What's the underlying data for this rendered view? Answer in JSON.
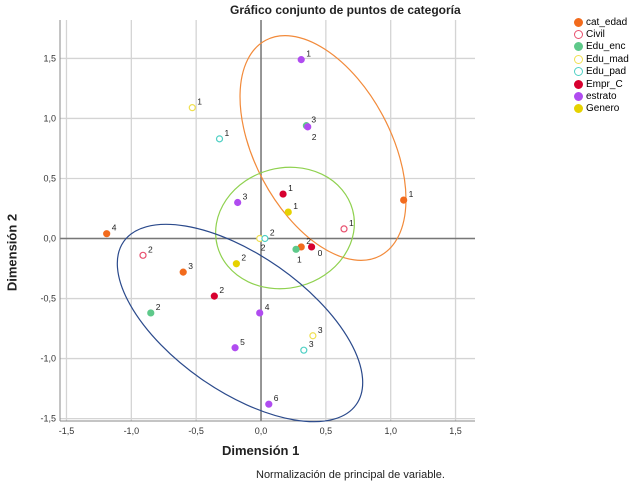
{
  "chart_data": {
    "type": "scatter",
    "title": "Gráfico conjunto de puntos de categoría",
    "xlabel": "Dimensión 1",
    "ylabel": "Dimensión 2",
    "footnote": "Normalización de principal de variable.",
    "xlim": [
      -1.55,
      1.65
    ],
    "ylim": [
      -1.52,
      1.82
    ],
    "xticks": [
      "-1,5",
      "-1,0",
      "-0,5",
      "0,0",
      "0,5",
      "1,0",
      "1,5"
    ],
    "yticks": [
      "1,5",
      "1,0",
      "0,5",
      "0,0",
      "-0,5",
      "-1,0",
      "-1,5"
    ],
    "grid": true,
    "legend_position": "right",
    "series": [
      {
        "name": "cat_edad",
        "color": "#f26b1d",
        "filled": true,
        "points": [
          {
            "label": "1",
            "x": 1.1,
            "y": 0.32
          },
          {
            "label": "2",
            "x": 0.31,
            "y": -0.07
          },
          {
            "label": "3",
            "x": -0.6,
            "y": -0.28
          },
          {
            "label": "4",
            "x": -1.19,
            "y": 0.04
          }
        ]
      },
      {
        "name": "Civil",
        "color": "#e8506e",
        "filled": false,
        "points": [
          {
            "label": "1",
            "x": 0.64,
            "y": 0.08
          },
          {
            "label": "2",
            "x": -0.91,
            "y": -0.14
          }
        ]
      },
      {
        "name": "Edu_enc",
        "color": "#5ec98a",
        "filled": true,
        "points": [
          {
            "label": "1",
            "x": 0.27,
            "y": -0.09
          },
          {
            "label": "2",
            "x": -0.85,
            "y": -0.62
          },
          {
            "label": "3",
            "x": 0.35,
            "y": 0.94
          }
        ]
      },
      {
        "name": "Edu_mad",
        "color": "#f0e050",
        "filled": false,
        "points": [
          {
            "label": "1",
            "x": -0.53,
            "y": 1.09
          },
          {
            "label": "2",
            "x": -0.01,
            "y": 0.0
          },
          {
            "label": "3",
            "x": 0.4,
            "y": -0.81
          }
        ]
      },
      {
        "name": "Edu_pad",
        "color": "#4fd0c4",
        "filled": false,
        "points": [
          {
            "label": "1",
            "x": -0.32,
            "y": 0.83
          },
          {
            "label": "2",
            "x": 0.03,
            "y": 0.0
          },
          {
            "label": "3",
            "x": 0.33,
            "y": -0.93
          }
        ]
      },
      {
        "name": "Empr_C",
        "color": "#d7002f",
        "filled": true,
        "points": [
          {
            "label": "0",
            "x": 0.39,
            "y": -0.07
          },
          {
            "label": "1",
            "x": 0.17,
            "y": 0.37
          },
          {
            "label": "2",
            "x": -0.36,
            "y": -0.48
          }
        ]
      },
      {
        "name": "estrato",
        "color": "#b04cf0",
        "filled": true,
        "points": [
          {
            "label": "1",
            "x": 0.31,
            "y": 1.49
          },
          {
            "label": "2",
            "x": 0.36,
            "y": 0.93
          },
          {
            "label": "3",
            "x": -0.18,
            "y": 0.3
          },
          {
            "label": "4",
            "x": -0.01,
            "y": -0.62
          },
          {
            "label": "5",
            "x": -0.2,
            "y": -0.91
          },
          {
            "label": "6",
            "x": 0.06,
            "y": -1.38
          }
        ]
      },
      {
        "name": "Genero",
        "color": "#e6d200",
        "filled": true,
        "points": [
          {
            "label": "1",
            "x": 0.21,
            "y": 0.22
          },
          {
            "label": "2",
            "x": -0.19,
            "y": -0.21
          }
        ]
      }
    ]
  }
}
